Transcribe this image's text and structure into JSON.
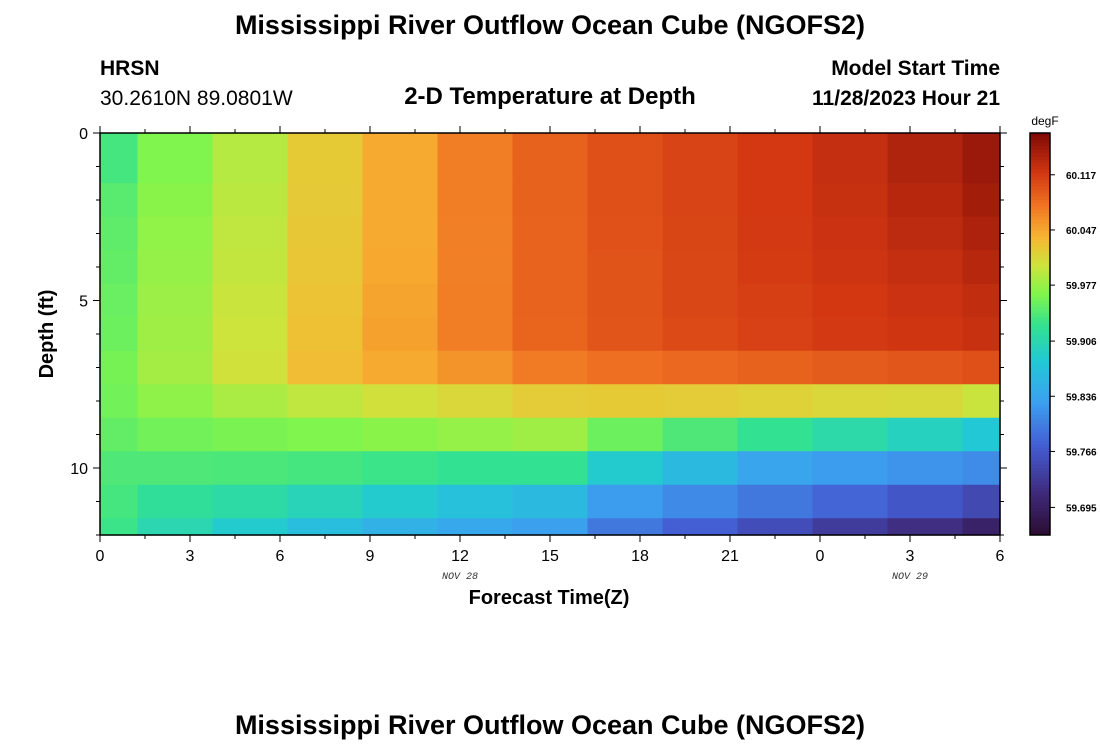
{
  "header": {
    "title": "Mississippi River Outflow Ocean Cube (NGOFS2)",
    "station": "HRSN",
    "coords": "30.2610N  89.0801W",
    "subtitle": "2-D Temperature at Depth",
    "model_start_label": "Model Start Time",
    "model_start_value": "11/28/2023 Hour 21",
    "bottom_title": "Mississippi River Outflow Ocean Cube (NGOFS2)"
  },
  "chart_data": {
    "type": "heatmap",
    "title": "2-D Temperature at Depth",
    "xlabel": "Forecast Time(Z)",
    "ylabel": "Depth (ft)",
    "x_tick_labels": [
      "0",
      "3",
      "6",
      "9",
      "12",
      "15",
      "18",
      "21",
      "0",
      "3",
      "6"
    ],
    "x_date_labels": [
      {
        "text": "NOV 28",
        "at_tick": 4
      },
      {
        "text": "NOV 29",
        "at_tick": 9
      }
    ],
    "xlim_hours": [
      0,
      30
    ],
    "y_tick_labels": [
      "0",
      "5",
      "10"
    ],
    "ylim_ft": [
      0,
      12
    ],
    "y_inverted": true,
    "colorbar": {
      "unit": "degF",
      "labels": [
        "60.117",
        "60.047",
        "59.977",
        "59.906",
        "59.836",
        "59.766",
        "59.695"
      ],
      "min": 59.66,
      "max": 60.17
    },
    "x_bounds_hours": [
      0,
      1.25,
      3.75,
      6.25,
      8.75,
      11.25,
      13.75,
      16.25,
      18.75,
      21.25,
      23.75,
      26.25,
      28.75,
      30
    ],
    "y_bounds_ft": [
      0,
      1.5,
      2.5,
      3.5,
      4.5,
      5.5,
      6.5,
      7.5,
      8.5,
      9.5,
      10.5,
      11.5,
      12
    ],
    "values_degF": [
      [
        59.935,
        59.965,
        59.99,
        60.022,
        60.045,
        60.072,
        60.09,
        60.102,
        60.11,
        60.118,
        60.128,
        60.14,
        60.152
      ],
      [
        59.945,
        59.97,
        59.993,
        60.023,
        60.045,
        60.072,
        60.09,
        60.102,
        60.11,
        60.118,
        60.126,
        60.136,
        60.147
      ],
      [
        59.948,
        59.973,
        59.995,
        60.024,
        60.045,
        60.071,
        60.089,
        60.101,
        60.109,
        60.117,
        60.124,
        60.132,
        60.142
      ],
      [
        59.95,
        59.975,
        59.997,
        60.025,
        60.046,
        60.071,
        60.089,
        60.1,
        60.108,
        60.116,
        60.122,
        60.128,
        60.136
      ],
      [
        59.953,
        59.978,
        60.0,
        60.027,
        60.048,
        60.072,
        60.089,
        60.1,
        60.108,
        60.114,
        60.119,
        60.124,
        60.13
      ],
      [
        59.955,
        59.98,
        60.002,
        60.03,
        60.05,
        60.072,
        60.088,
        60.099,
        60.106,
        60.112,
        60.117,
        60.121,
        60.125
      ],
      [
        59.96,
        59.982,
        60.004,
        60.032,
        60.045,
        60.058,
        60.074,
        60.081,
        60.086,
        60.09,
        60.094,
        60.098,
        60.102
      ],
      [
        59.958,
        59.972,
        59.985,
        59.995,
        60.005,
        60.012,
        60.02,
        60.022,
        60.02,
        60.016,
        60.012,
        60.01,
        60.0
      ],
      [
        59.95,
        59.958,
        59.962,
        59.965,
        59.97,
        59.975,
        59.98,
        59.955,
        59.94,
        59.925,
        59.91,
        59.895,
        59.88
      ],
      [
        59.94,
        59.94,
        59.938,
        59.935,
        59.93,
        59.925,
        59.925,
        59.885,
        59.86,
        59.835,
        59.825,
        59.818,
        59.812
      ],
      [
        59.935,
        59.92,
        59.912,
        59.9,
        59.885,
        59.87,
        59.86,
        59.825,
        59.81,
        59.795,
        59.78,
        59.765,
        59.75
      ],
      [
        59.93,
        59.905,
        59.885,
        59.865,
        59.85,
        59.838,
        59.83,
        59.795,
        59.775,
        59.755,
        59.735,
        59.718,
        59.7
      ]
    ]
  },
  "colors": {
    "frame": "#000000",
    "background": "#ffffff"
  }
}
